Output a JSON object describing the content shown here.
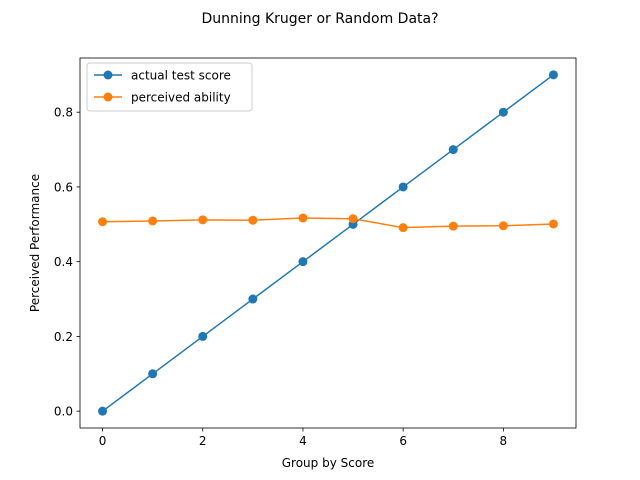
{
  "chart_data": {
    "type": "line",
    "title": "Dunning Kruger or Random Data?",
    "xlabel": "Group by Score",
    "ylabel": "Perceived Performance",
    "xlim": [
      -0.45,
      9.45
    ],
    "ylim": [
      -0.045,
      0.945
    ],
    "xticks": [
      0,
      2,
      4,
      6,
      8
    ],
    "yticks": [
      0.0,
      0.2,
      0.4,
      0.6,
      0.8
    ],
    "xtick_labels": [
      "0",
      "2",
      "4",
      "6",
      "8"
    ],
    "ytick_labels": [
      "0.0",
      "0.2",
      "0.4",
      "0.6",
      "0.8"
    ],
    "grid": false,
    "legend_position": "top-left",
    "x": [
      0,
      1,
      2,
      3,
      4,
      5,
      6,
      7,
      8,
      9
    ],
    "series": [
      {
        "name": "actual test score",
        "color": "#1f77b4",
        "marker": "circle",
        "values": [
          0.0,
          0.1,
          0.2,
          0.3,
          0.4,
          0.5,
          0.6,
          0.7,
          0.8,
          0.9
        ]
      },
      {
        "name": "perceived ability",
        "color": "#ff7f0e",
        "marker": "circle",
        "values": [
          0.507,
          0.509,
          0.512,
          0.511,
          0.517,
          0.515,
          0.491,
          0.495,
          0.496,
          0.501
        ]
      }
    ]
  }
}
